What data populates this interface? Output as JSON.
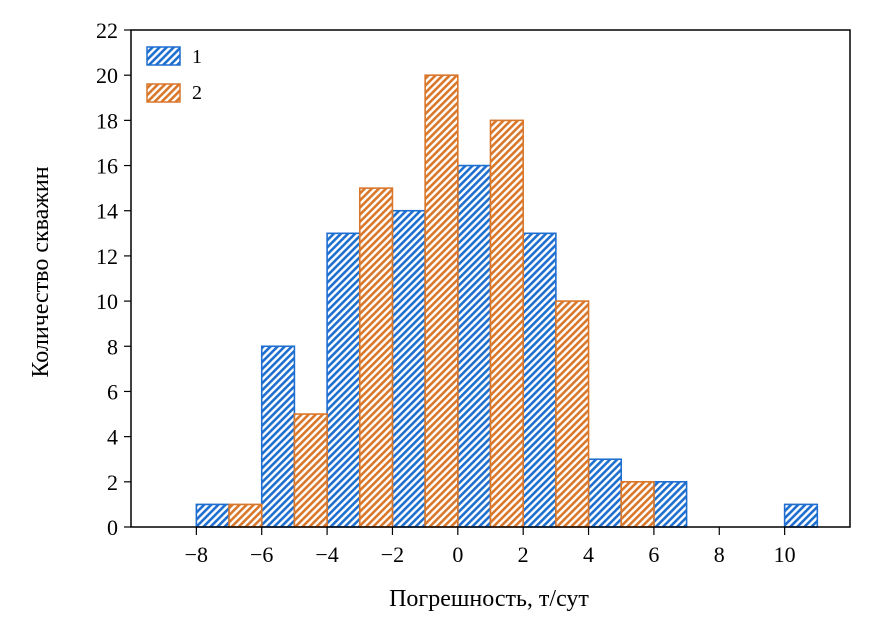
{
  "chart_data": {
    "type": "bar",
    "xlabel": "Погрешность, т/сут",
    "ylabel": "Количество скважин",
    "x_ticks": [
      "−8",
      "−6",
      "−4",
      "−2",
      "0",
      "2",
      "4",
      "6",
      "8",
      "10"
    ],
    "x_tick_values": [
      -8,
      -6,
      -4,
      -2,
      0,
      2,
      4,
      6,
      8,
      10
    ],
    "y_ticks": [
      "0",
      "2",
      "4",
      "6",
      "8",
      "10",
      "12",
      "14",
      "16",
      "18",
      "20",
      "22"
    ],
    "xlim": [
      -10,
      12
    ],
    "ylim": [
      0,
      22
    ],
    "bin_width": 1,
    "grid": false,
    "legend_position": "top-left",
    "series": [
      {
        "name": "1",
        "color": "#1f6fd0",
        "pattern": "diagonal-hatch",
        "bins": [
          {
            "x_start": -8,
            "x_end": -7,
            "value": 1
          },
          {
            "x_start": -6,
            "x_end": -5,
            "value": 8
          },
          {
            "x_start": -4,
            "x_end": -3,
            "value": 13
          },
          {
            "x_start": -2,
            "x_end": -1,
            "value": 14
          },
          {
            "x_start": 0,
            "x_end": 1,
            "value": 16
          },
          {
            "x_start": 2,
            "x_end": 3,
            "value": 13
          },
          {
            "x_start": 4,
            "x_end": 5,
            "value": 3
          },
          {
            "x_start": 6,
            "x_end": 7,
            "value": 2
          },
          {
            "x_start": 10,
            "x_end": 11,
            "value": 1
          }
        ]
      },
      {
        "name": "2",
        "color": "#d9772b",
        "pattern": "diagonal-hatch",
        "bins": [
          {
            "x_start": -7,
            "x_end": -6,
            "value": 1
          },
          {
            "x_start": -5,
            "x_end": -4,
            "value": 5
          },
          {
            "x_start": -3,
            "x_end": -2,
            "value": 15
          },
          {
            "x_start": -1,
            "x_end": 0,
            "value": 20
          },
          {
            "x_start": 1,
            "x_end": 2,
            "value": 18
          },
          {
            "x_start": 3,
            "x_end": 4,
            "value": 10
          },
          {
            "x_start": 5,
            "x_end": 6,
            "value": 2
          }
        ]
      }
    ]
  }
}
